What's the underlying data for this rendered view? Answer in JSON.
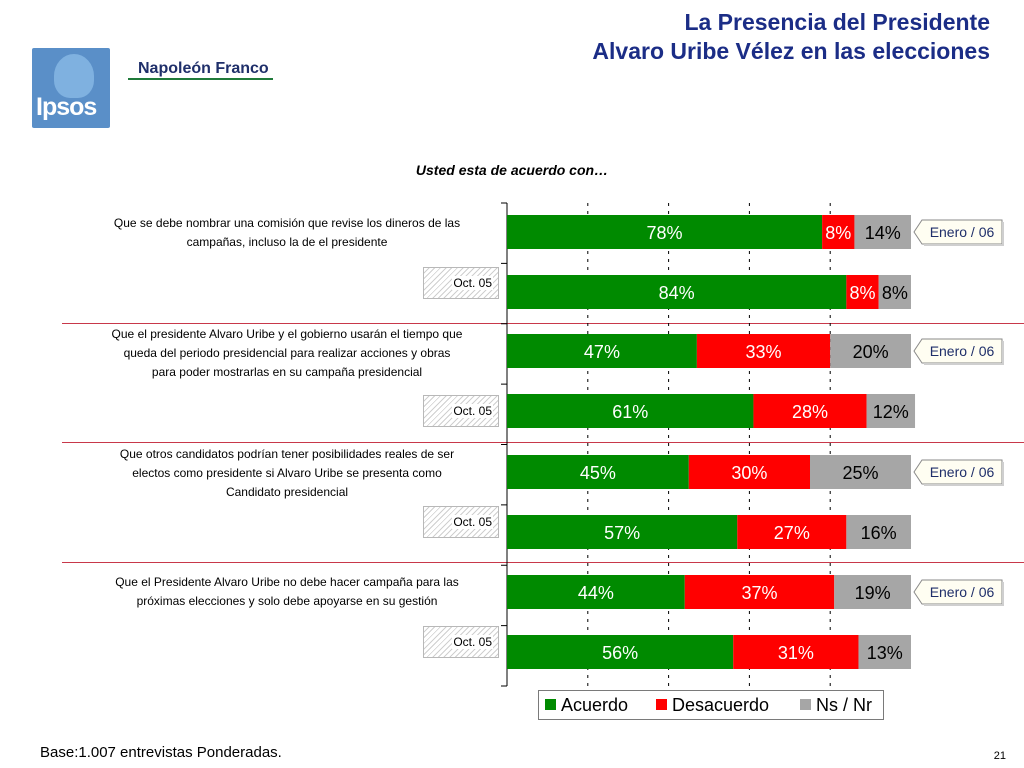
{
  "header": {
    "logo_text": "Ipsos",
    "brand": "Napoleón Franco",
    "title_line1": "La Presencia del Presidente",
    "title_line2": "Alvaro Uribe Vélez en las elecciones"
  },
  "footer": {
    "base": "Base:1.007 entrevistas Ponderadas.",
    "page": "21"
  },
  "colors": {
    "acuerdo": "#008a00",
    "desacuerdo": "#ff0000",
    "nsnr": "#a6a6a6"
  },
  "chart_data": {
    "type": "bar",
    "orientation": "horizontal-stacked-100",
    "title": "Usted esta de acuerdo con…",
    "badge_label": "Enero / 06",
    "oct_label": "Oct. 05",
    "xlim": [
      0,
      100
    ],
    "legend_position": "bottom",
    "series_names": [
      "Acuerdo",
      "Desacuerdo",
      "Ns / Nr"
    ],
    "groups": [
      {
        "question_lines": [
          "Que se debe nombrar una comisión que revise los dineros de las",
          "campañas, incluso la de el presidente"
        ],
        "enero_06": [
          78,
          8,
          14
        ],
        "oct_05": [
          84,
          8,
          8
        ]
      },
      {
        "question_lines": [
          "Que el presidente Alvaro Uribe y el gobierno usarán el tiempo que",
          "queda del periodo presidencial para realizar acciones y obras",
          "para poder mostrarlas en su campaña presidencial"
        ],
        "enero_06": [
          47,
          33,
          20
        ],
        "oct_05": [
          61,
          28,
          12
        ]
      },
      {
        "question_lines": [
          "Que otros candidatos podrían tener posibilidades reales de ser",
          "electos como presidente si Alvaro Uribe se presenta como",
          "Candidato presidencial"
        ],
        "enero_06": [
          45,
          30,
          25
        ],
        "oct_05": [
          57,
          27,
          16
        ]
      },
      {
        "question_lines": [
          "Que el Presidente Alvaro Uribe no debe hacer campaña para las",
          "próximas elecciones y solo debe apoyarse en su gestión"
        ],
        "enero_06": [
          44,
          37,
          19
        ],
        "oct_05": [
          56,
          31,
          13
        ]
      }
    ]
  }
}
